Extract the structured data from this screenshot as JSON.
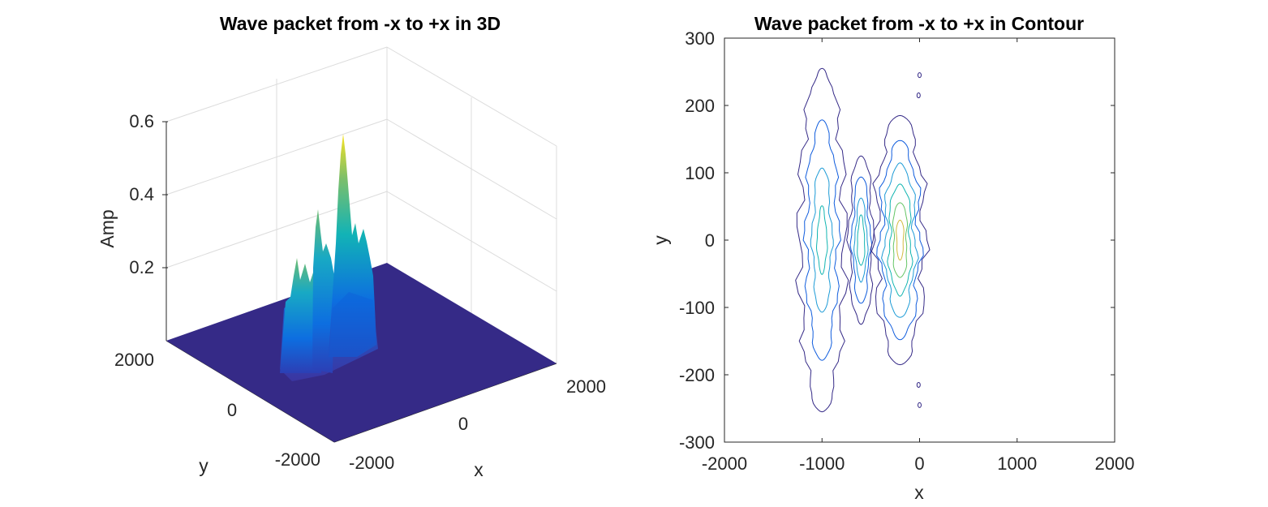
{
  "chart_data": [
    {
      "type": "surface",
      "title": "Wave packet from -x to +x in 3D",
      "xlabel": "x",
      "ylabel": "y",
      "zlabel": "Amp",
      "xlim": [
        -2000,
        2000
      ],
      "ylim": [
        -2000,
        2000
      ],
      "zlim": [
        0,
        0.6
      ],
      "xticks": [
        "-2000",
        "0",
        "2000"
      ],
      "yticks": [
        "-2000",
        "0",
        "2000"
      ],
      "zticks": [
        "0.2",
        "0.4",
        "0.6"
      ],
      "grid": true,
      "colormap": "parula",
      "colors": {
        "low": "#352a87",
        "mid_blue": "#0f5cdd",
        "teal": "#12b5b1",
        "high": "#f9fb0e"
      },
      "peaks": [
        {
          "x": -1000,
          "y": 0,
          "amp": 0.2
        },
        {
          "x": -600,
          "y": 0,
          "amp": 0.39
        },
        {
          "x": -150,
          "y": 0,
          "amp": 0.55
        }
      ]
    },
    {
      "type": "contour",
      "title": "Wave packet from -x to +x in Contour",
      "xlabel": "x",
      "ylabel": "y",
      "xlim": [
        -2000,
        2000
      ],
      "ylim": [
        -300,
        300
      ],
      "xticks": [
        -2000,
        -1000,
        0,
        1000,
        2000
      ],
      "yticks": [
        300,
        200,
        100,
        0,
        -100,
        -200,
        -300
      ],
      "colormap": "parula",
      "bands": [
        {
          "x_center": -1000,
          "x_halfwidth": 230,
          "y_halfextent": 255
        },
        {
          "x_center": -600,
          "x_halfwidth": 120,
          "y_halfextent": 125
        },
        {
          "x_center": -200,
          "x_halfwidth": 250,
          "y_halfextent": 185
        }
      ]
    }
  ]
}
